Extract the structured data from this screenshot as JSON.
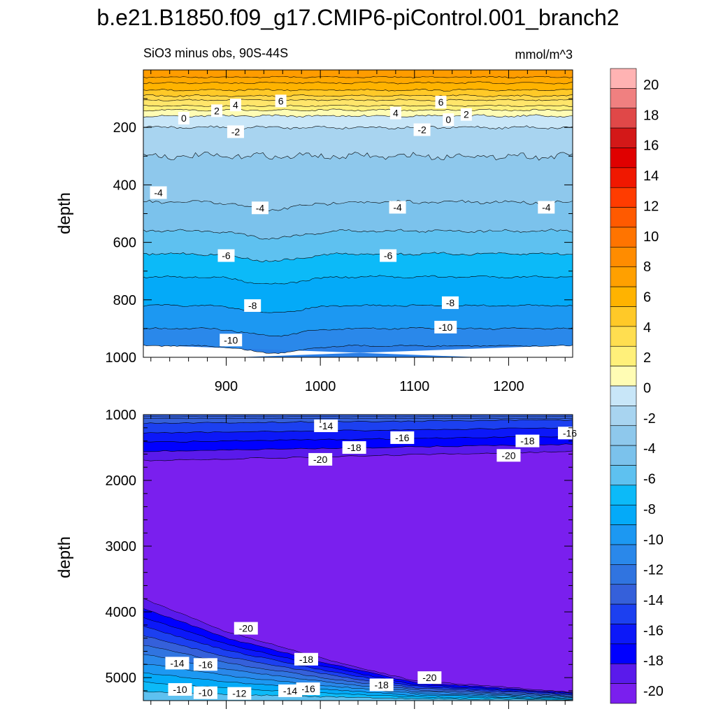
{
  "title": "b.e21.B1850.f09_g17.CMIP6-piControl.001_branch2",
  "colors": {
    "scale": [
      "#ffb3b3",
      "#f08080",
      "#e04848",
      "#d31818",
      "#e00000",
      "#f01800",
      "#ff3c00",
      "#ff5a00",
      "#ff7400",
      "#ff8c00",
      "#ffa000",
      "#ffb300",
      "#ffc928",
      "#ffde50",
      "#fff07a",
      "#fffcb4",
      "#c8e6f8",
      "#a8d4f0",
      "#8ec8ec",
      "#7bc2ec",
      "#5ec1f0",
      "#0cbaf8",
      "#04aaf8",
      "#1c98f2",
      "#2a88ea",
      "#3074e0",
      "#3560da",
      "#1c40f0",
      "#0c18f8",
      "#0000ff",
      "#5a1aeb",
      "#7a1fee"
    ],
    "lines": "#000000"
  },
  "chart_data": [
    {
      "type": "contour",
      "subtitle_left": "SiO3 minus obs, 90S-44S",
      "subtitle_right": "mmol/m^3",
      "ylabel": "depth",
      "xlabel": "",
      "xlim": [
        812,
        1268
      ],
      "ylim": [
        1000,
        0
      ],
      "x_ticks": [
        900,
        1000,
        1100,
        1200
      ],
      "x_tick_labels": [
        "900",
        "1000",
        "1100",
        "1200"
      ],
      "y_ticks": [
        200,
        400,
        600,
        800,
        1000
      ],
      "y_tick_labels": [
        "200",
        "400",
        "600",
        "800",
        "1000"
      ],
      "contour_levels_at_depth": [
        {
          "depth": 70,
          "value": 6
        },
        {
          "depth": 105,
          "value": 4
        },
        {
          "depth": 135,
          "value": 2
        },
        {
          "depth": 160,
          "value": 0
        },
        {
          "depth": 200,
          "value": -2
        },
        {
          "depth": 460,
          "value": -4
        },
        {
          "depth": 640,
          "value": -6
        },
        {
          "depth": 820,
          "value": -8
        },
        {
          "depth": 900,
          "value": -10
        }
      ],
      "contour_labels": [
        {
          "x": 890,
          "depth": 142,
          "text": "2"
        },
        {
          "x": 910,
          "depth": 122,
          "text": "4"
        },
        {
          "x": 958,
          "depth": 108,
          "text": "6"
        },
        {
          "x": 855,
          "depth": 168,
          "text": "0"
        },
        {
          "x": 1080,
          "depth": 150,
          "text": "4"
        },
        {
          "x": 1128,
          "depth": 112,
          "text": "6"
        },
        {
          "x": 1155,
          "depth": 155,
          "text": "2"
        },
        {
          "x": 1136,
          "depth": 173,
          "text": "0"
        },
        {
          "x": 910,
          "depth": 215,
          "text": "-2"
        },
        {
          "x": 1108,
          "depth": 208,
          "text": "-2"
        },
        {
          "x": 828,
          "depth": 427,
          "text": "-4"
        },
        {
          "x": 936,
          "depth": 480,
          "text": "-4"
        },
        {
          "x": 1082,
          "depth": 478,
          "text": "-4"
        },
        {
          "x": 1240,
          "depth": 478,
          "text": "-4"
        },
        {
          "x": 900,
          "depth": 646,
          "text": "-6"
        },
        {
          "x": 1072,
          "depth": 646,
          "text": "-6"
        },
        {
          "x": 928,
          "depth": 820,
          "text": "-8"
        },
        {
          "x": 1138,
          "depth": 810,
          "text": "-8"
        },
        {
          "x": 905,
          "depth": 940,
          "text": "-10"
        },
        {
          "x": 1133,
          "depth": 895,
          "text": "-10"
        }
      ]
    },
    {
      "type": "contour",
      "ylabel": "depth",
      "xlabel": "",
      "xlim": [
        812,
        1268
      ],
      "ylim": [
        5350,
        1000
      ],
      "x_ticks": [
        900,
        1000,
        1100,
        1200
      ],
      "x_tick_labels": [],
      "y_ticks": [
        1000,
        2000,
        3000,
        4000,
        5000
      ],
      "y_tick_labels": [
        "1000",
        "2000",
        "3000",
        "4000",
        "5000"
      ],
      "contour_levels_at_depth_upper": [
        {
          "depth": 1150,
          "value": -14
        },
        {
          "depth": 1350,
          "value": -16
        },
        {
          "depth": 1500,
          "value": -18
        },
        {
          "depth": 1650,
          "value": -20
        }
      ],
      "deep_boundary_depth_at_x": [
        {
          "x": 812,
          "depth": 3800
        },
        {
          "x": 900,
          "depth": 4300
        },
        {
          "x": 1000,
          "depth": 4700
        },
        {
          "x": 1100,
          "depth": 5050
        },
        {
          "x": 1200,
          "depth": 5150
        },
        {
          "x": 1268,
          "depth": 5220
        }
      ],
      "contour_labels": [
        {
          "x": 1006,
          "depth": 1170,
          "text": "-14"
        },
        {
          "x": 1036,
          "depth": 1500,
          "text": "-18"
        },
        {
          "x": 1087,
          "depth": 1350,
          "text": "-16"
        },
        {
          "x": 1000,
          "depth": 1680,
          "text": "-20"
        },
        {
          "x": 1200,
          "depth": 1620,
          "text": "-20"
        },
        {
          "x": 1220,
          "depth": 1400,
          "text": "-18"
        },
        {
          "x": 1265,
          "depth": 1280,
          "text": "-16"
        },
        {
          "x": 921,
          "depth": 4250,
          "text": "-20"
        },
        {
          "x": 878,
          "depth": 4800,
          "text": "-16"
        },
        {
          "x": 985,
          "depth": 4720,
          "text": "-18"
        },
        {
          "x": 848,
          "depth": 4780,
          "text": "-14"
        },
        {
          "x": 1116,
          "depth": 5000,
          "text": "-20"
        },
        {
          "x": 1065,
          "depth": 5110,
          "text": "-18"
        },
        {
          "x": 987,
          "depth": 5170,
          "text": "-16"
        },
        {
          "x": 968,
          "depth": 5200,
          "text": "-14"
        },
        {
          "x": 914,
          "depth": 5240,
          "text": "-12"
        },
        {
          "x": 878,
          "depth": 5230,
          "text": "-10"
        },
        {
          "x": 851,
          "depth": 5180,
          "text": "-10"
        }
      ]
    }
  ],
  "colorbar": {
    "levels": [
      20,
      18,
      16,
      14,
      12,
      10,
      8,
      6,
      4,
      2,
      0,
      -2,
      -4,
      -6,
      -8,
      -10,
      -12,
      -14,
      -16,
      -18,
      -20
    ],
    "labels": [
      "20",
      "18",
      "16",
      "14",
      "12",
      "10",
      "8",
      "6",
      "4",
      "2",
      "0",
      "-2",
      "-4",
      "-6",
      "-8",
      "-10",
      "-12",
      "-14",
      "-16",
      "-18",
      "-20"
    ]
  }
}
